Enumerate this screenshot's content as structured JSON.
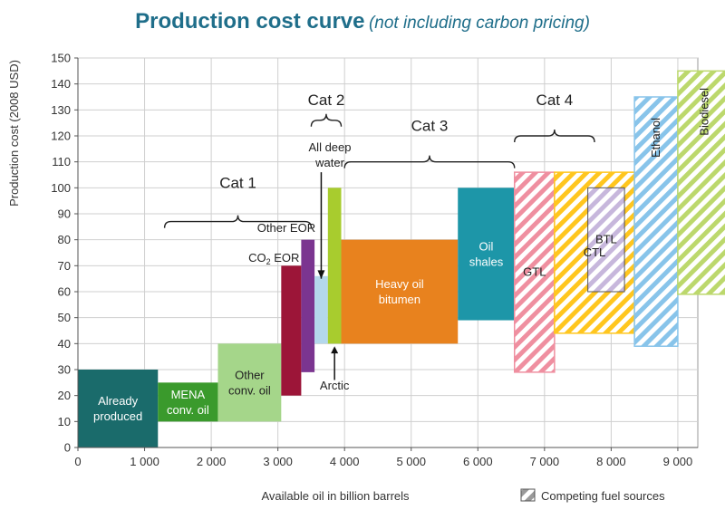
{
  "chart_data": {
    "type": "bar",
    "subtype": "supply-cost-curve",
    "title": "Production cost curve",
    "subtitle": "(not including carbon pricing)",
    "xlabel": "Available oil in billion barrels",
    "ylabel": "Production cost (2008 USD)",
    "xlim": [
      0,
      9300
    ],
    "ylim": [
      0,
      150
    ],
    "xticks": [
      0,
      1000,
      2000,
      3000,
      4000,
      5000,
      6000,
      7000,
      8000,
      9000
    ],
    "xtick_labels": [
      "0",
      "1 000",
      "2 000",
      "3 000",
      "4 000",
      "5 000",
      "6 000",
      "7 000",
      "8 000",
      "9 000"
    ],
    "yticks": [
      0,
      10,
      20,
      30,
      40,
      50,
      60,
      70,
      80,
      90,
      100,
      110,
      120,
      130,
      140,
      150
    ],
    "grid": true,
    "legend": {
      "label": "Competing fuel sources",
      "position": "bottom-right"
    },
    "segments": [
      {
        "name": "already-produced",
        "label": [
          "Already",
          "produced"
        ],
        "x_start": 0,
        "x_end": 1200,
        "cost_low": 0,
        "cost_high": 30,
        "color": "#1a6b6b",
        "text_color": "#ffffff",
        "hatched": false
      },
      {
        "name": "mena-conv-oil",
        "label": [
          "MENA",
          "conv. oil"
        ],
        "x_start": 1200,
        "x_end": 2100,
        "cost_low": 10,
        "cost_high": 25,
        "color": "#3a9a2c",
        "text_color": "#ffffff",
        "hatched": false
      },
      {
        "name": "other-conv-oil",
        "label": [
          "Other",
          "conv. oil"
        ],
        "x_start": 2100,
        "x_end": 3050,
        "cost_low": 10,
        "cost_high": 40,
        "color": "#a5d68a",
        "text_color": "#222222",
        "hatched": false
      },
      {
        "name": "co2-eor",
        "label": [],
        "x_start": 3050,
        "x_end": 3350,
        "cost_low": 20,
        "cost_high": 70,
        "color": "#9c1538",
        "text_color": "#ffffff",
        "hatched": false
      },
      {
        "name": "other-eor",
        "label": [],
        "x_start": 3350,
        "x_end": 3550,
        "cost_low": 29,
        "cost_high": 80,
        "color": "#7b3590",
        "text_color": "#ffffff",
        "hatched": false
      },
      {
        "name": "arctic",
        "label": [],
        "x_start": 3550,
        "x_end": 3750,
        "cost_low": 40,
        "cost_high": 66,
        "color": "#b4d8ec",
        "text_color": "#222222",
        "hatched": false
      },
      {
        "name": "all-deep-water",
        "label": [],
        "x_start": 3750,
        "x_end": 3950,
        "cost_low": 40,
        "cost_high": 100,
        "color": "#a8cc2e",
        "text_color": "#222222",
        "hatched": false
      },
      {
        "name": "heavy-oil-bitumen",
        "label": [
          "Heavy oil",
          "bitumen"
        ],
        "x_start": 3950,
        "x_end": 5700,
        "cost_low": 40,
        "cost_high": 80,
        "color": "#e8821e",
        "text_color": "#ffffff",
        "hatched": false
      },
      {
        "name": "oil-shales",
        "label": [
          "Oil",
          "shales"
        ],
        "x_start": 5700,
        "x_end": 6550,
        "cost_low": 49,
        "cost_high": 100,
        "color": "#1d96a8",
        "text_color": "#ffffff",
        "hatched": false
      },
      {
        "name": "gtl",
        "label": [
          "GTL"
        ],
        "x_start": 6550,
        "x_end": 7150,
        "cost_low": 29,
        "cost_high": 106,
        "color": "#ef8fa0",
        "text_color": "#222222",
        "hatched": true
      },
      {
        "name": "ctl",
        "label": [
          "CTL"
        ],
        "x_start": 7150,
        "x_end": 8350,
        "cost_low": 44,
        "cost_high": 106,
        "color": "#ffc61e",
        "text_color": "#222222",
        "hatched": true
      },
      {
        "name": "btl",
        "label": [
          "BTL"
        ],
        "x_start": 7650,
        "x_end": 8200,
        "cost_low": 60,
        "cost_high": 100,
        "color": "#c7b7dc",
        "text_color": "#222222",
        "hatched": true
      },
      {
        "name": "ethanol",
        "label": [
          "Ethanol"
        ],
        "x_start": 8350,
        "x_end": 9000,
        "cost_low": 39,
        "cost_high": 135,
        "color": "#88c4ea",
        "text_color": "#222222",
        "hatched": true,
        "label_rotated": true
      },
      {
        "name": "biodiesel",
        "label": [
          "Biodiesel"
        ],
        "x_start": 9000,
        "x_end": 9800,
        "cost_low": 59,
        "cost_high": 145,
        "color": "#bcd86c",
        "text_color": "#222222",
        "hatched": true,
        "label_rotated": true
      }
    ],
    "annotations": [
      {
        "name": "cat-1",
        "text": "Cat 1",
        "x_start": 1300,
        "x_end": 3500,
        "brace_value": 87,
        "label_value": 102
      },
      {
        "name": "cat-2",
        "text": "Cat 2",
        "x_start": 3500,
        "x_end": 3950,
        "brace_value": 126,
        "label_value": 134
      },
      {
        "name": "cat-3",
        "text": "Cat 3",
        "x_start": 4000,
        "x_end": 6550,
        "brace_value": 110,
        "label_value": 124
      },
      {
        "name": "cat-4",
        "text": "Cat 4",
        "x_start": 6550,
        "x_end": 7750,
        "brace_value": 120,
        "label_value": 134
      }
    ],
    "callouts": {
      "other_eor": "Other EOR",
      "co2_eor_prefix": "CO",
      "co2_eor_sub": "2",
      "co2_eor_suffix": " EOR",
      "all_deep_water": [
        "All deep",
        "water"
      ],
      "arctic": "Arctic"
    }
  }
}
